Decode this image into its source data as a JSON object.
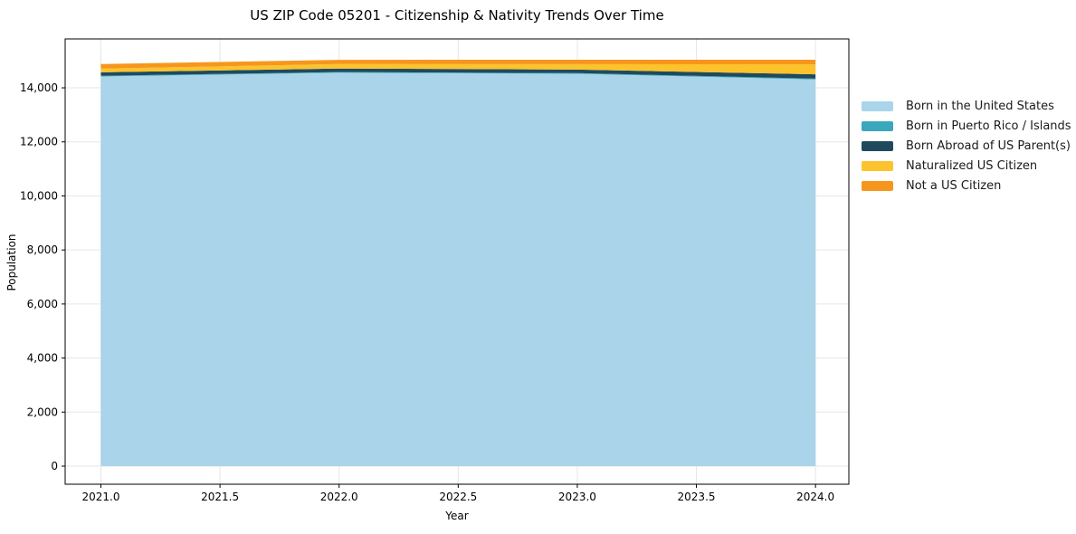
{
  "chart_data": {
    "type": "area",
    "stacked": true,
    "title": "US ZIP Code 05201 - Citizenship & Nativity Trends Over Time",
    "xlabel": "Year",
    "ylabel": "Population",
    "x": [
      2021,
      2022,
      2023,
      2024
    ],
    "series": [
      {
        "name": "Born in the United States",
        "color": "#a9d4ea",
        "values": [
          14420,
          14560,
          14520,
          14310
        ]
      },
      {
        "name": "Born in Puerto Rico / Islands",
        "color": "#3aa7bd",
        "values": [
          25,
          25,
          25,
          30
        ]
      },
      {
        "name": "Born Abroad of US Parent(s)",
        "color": "#1f4a5e",
        "values": [
          130,
          130,
          130,
          160
        ]
      },
      {
        "name": "Naturalized US Citizen",
        "color": "#fcc32d",
        "values": [
          135,
          165,
          200,
          370
        ]
      },
      {
        "name": "Not a US Citizen",
        "color": "#f7961d",
        "values": [
          170,
          155,
          165,
          170
        ]
      }
    ],
    "xlim": [
      2020.85,
      2024.14
    ],
    "ylim": [
      -670,
      15810
    ],
    "xticks": [
      2021.0,
      2021.5,
      2022.0,
      2022.5,
      2023.0,
      2023.5,
      2024.0
    ],
    "xtick_labels": [
      "2021.0",
      "2021.5",
      "2022.0",
      "2022.5",
      "2023.0",
      "2023.5",
      "2024.0"
    ],
    "yticks": [
      0,
      2000,
      4000,
      6000,
      8000,
      10000,
      12000,
      14000
    ],
    "ytick_labels": [
      "0",
      "2,000",
      "4,000",
      "6,000",
      "8,000",
      "10,000",
      "12,000",
      "14,000"
    ],
    "grid": true,
    "legend_position": "right",
    "colors": {
      "gridline": "#e6e6e6",
      "frame": "#000000",
      "tick_text": "#000000",
      "background": "#ffffff"
    }
  }
}
